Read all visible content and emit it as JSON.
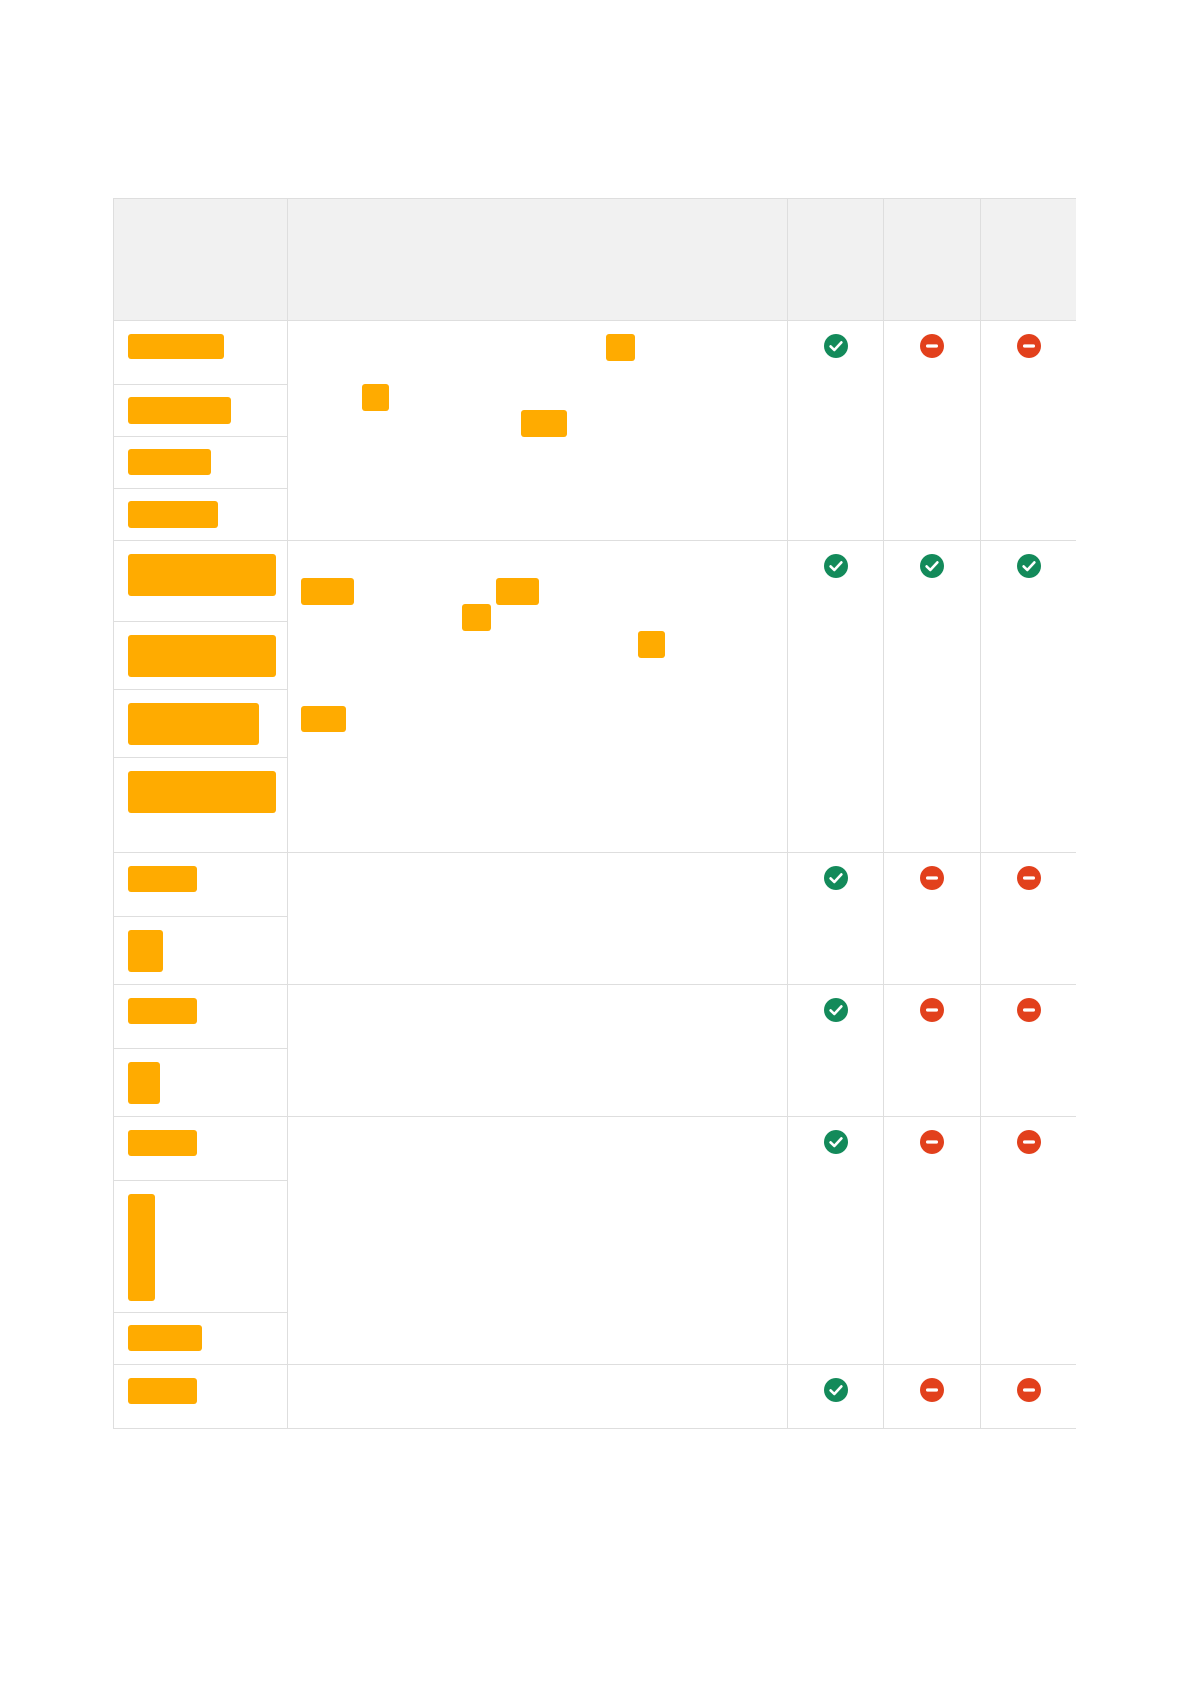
{
  "colors": {
    "redaction": "#ffab00",
    "header_background": "#f1f1f1",
    "grid_line": "#dedede",
    "check_green": "#138a5a",
    "block_red": "#e2401c"
  },
  "table": {
    "header": [
      "",
      "",
      "",
      "",
      ""
    ],
    "icon_legend": {
      "check": "check-circle-icon",
      "block": "minus-circle-icon"
    },
    "groups": [
      {
        "sub_rows": 4,
        "status": [
          "check",
          "block",
          "block"
        ]
      },
      {
        "sub_rows": 4,
        "status": [
          "check",
          "check",
          "check"
        ]
      },
      {
        "sub_rows": 2,
        "status": [
          "check",
          "block",
          "block"
        ]
      },
      {
        "sub_rows": 2,
        "status": [
          "check",
          "block",
          "block"
        ]
      },
      {
        "sub_rows": 3,
        "status": [
          "check",
          "block",
          "block"
        ]
      },
      {
        "sub_rows": 1,
        "status": [
          "check",
          "block",
          "block"
        ]
      }
    ]
  }
}
